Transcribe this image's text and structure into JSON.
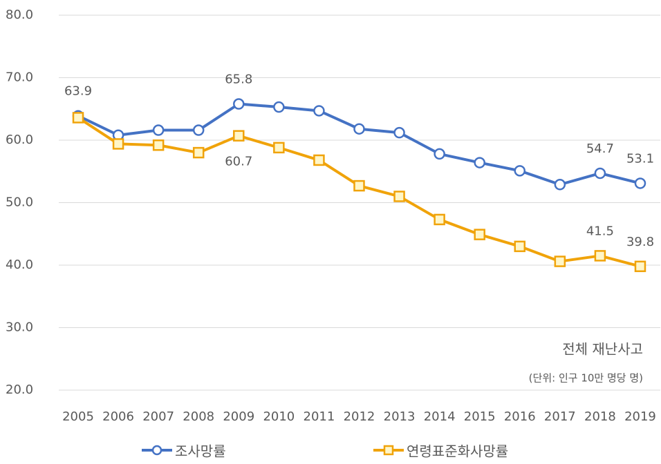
{
  "chart_data": {
    "type": "line",
    "categories": [
      "2005",
      "2006",
      "2007",
      "2008",
      "2009",
      "2010",
      "2011",
      "2012",
      "2013",
      "2014",
      "2015",
      "2016",
      "2017",
      "2018",
      "2019"
    ],
    "series": [
      {
        "name": "조사망률",
        "color": "#4472c4",
        "marker": "circle",
        "values": [
          63.9,
          60.8,
          61.6,
          61.6,
          65.8,
          65.3,
          64.7,
          61.8,
          61.2,
          57.8,
          56.4,
          55.1,
          52.9,
          54.7,
          53.1
        ],
        "value_labels": [
          "63.9",
          null,
          null,
          null,
          "65.8",
          null,
          null,
          null,
          null,
          null,
          null,
          null,
          null,
          "54.7",
          "53.1"
        ]
      },
      {
        "name": "연령표준화사망률",
        "color": "#f0a30a",
        "marker": "square",
        "values": [
          63.6,
          59.4,
          59.2,
          58.0,
          60.7,
          58.8,
          56.8,
          52.7,
          51.0,
          47.3,
          44.9,
          43.0,
          40.6,
          41.5,
          39.8
        ],
        "value_labels": [
          null,
          null,
          null,
          null,
          "60.7",
          null,
          null,
          null,
          null,
          null,
          null,
          null,
          null,
          "41.5",
          "39.8"
        ]
      }
    ],
    "ylim": [
      20,
      80
    ],
    "yticks": [
      {
        "value": 20,
        "label": "20.0"
      },
      {
        "value": 30,
        "label": "30.0"
      },
      {
        "value": 40,
        "label": "40.0"
      },
      {
        "value": 50,
        "label": "50.0"
      },
      {
        "value": 60,
        "label": "60.0"
      },
      {
        "value": 70,
        "label": "70.0"
      },
      {
        "value": 80,
        "label": "80.0"
      }
    ],
    "grid": true,
    "annotations": [
      "전체 재난사고",
      "(단위: 인구 10만 명당 명)"
    ]
  }
}
